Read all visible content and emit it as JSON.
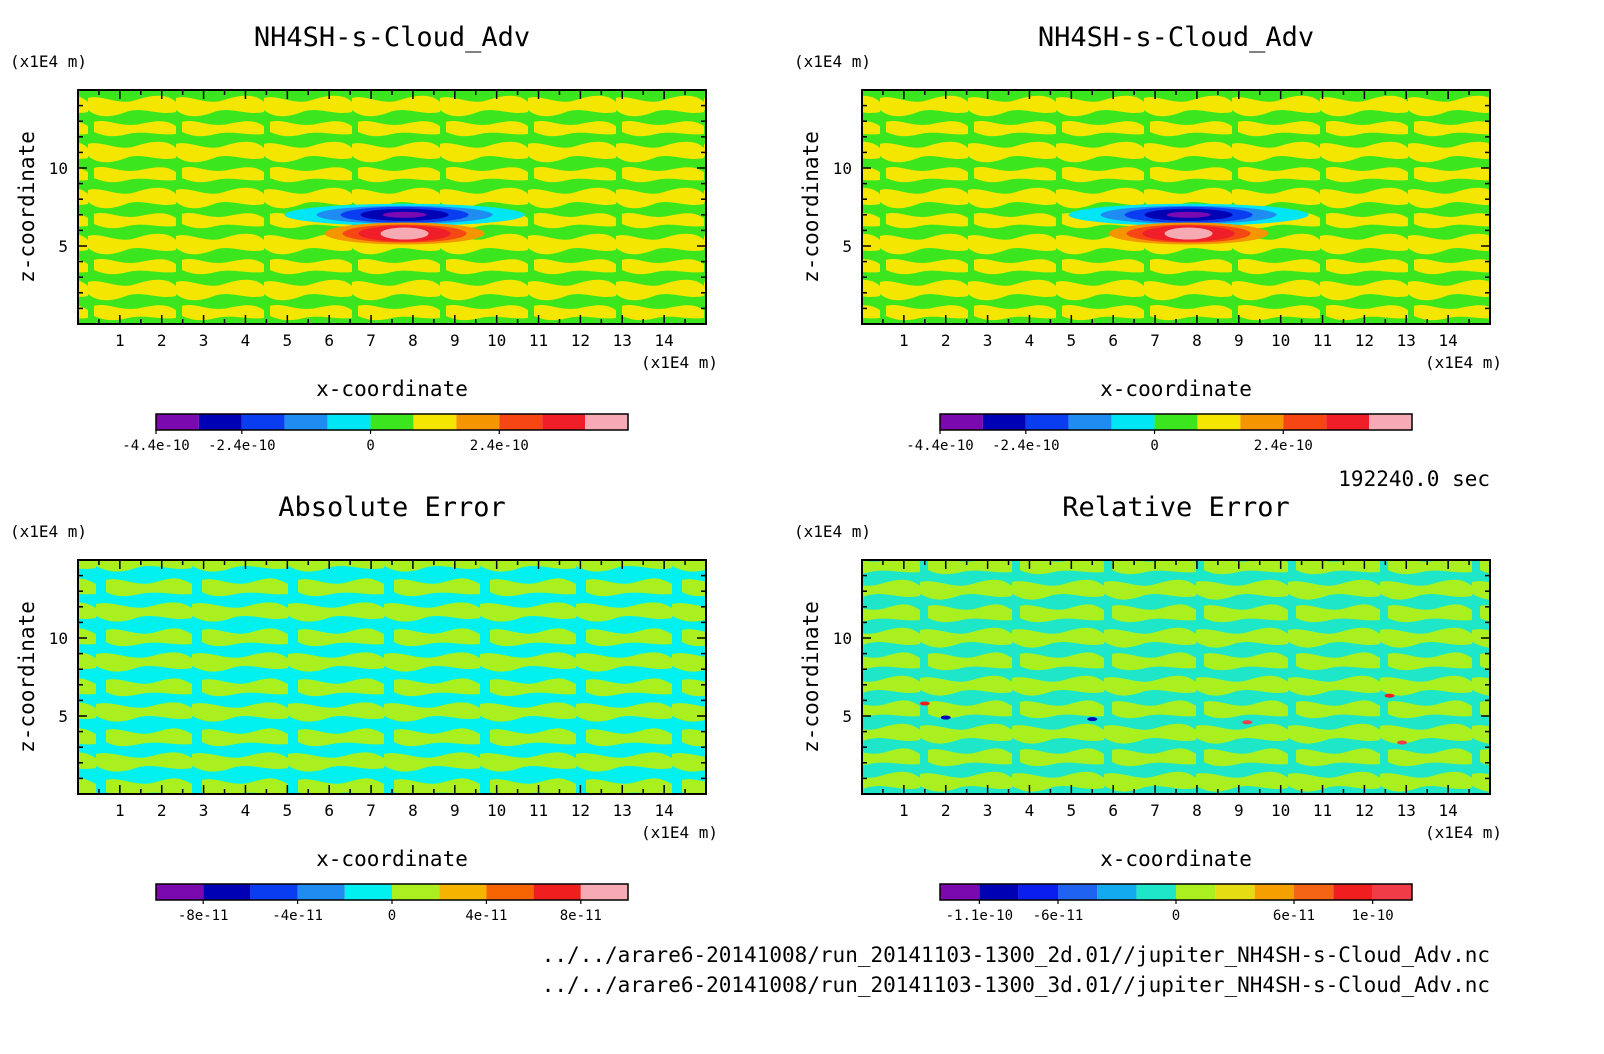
{
  "time_label": "192240.0 sec",
  "files": [
    "../../arare6-20141008/run_20141103-1300_2d.01//jupiter_NH4SH-s-Cloud_Adv.nc",
    "../../arare6-20141008/run_20141103-1300_3d.01//jupiter_NH4SH-s-Cloud_Adv.nc"
  ],
  "palettes": {
    "field": [
      "#7a0ab0",
      "#0000b4",
      "#0a3cf0",
      "#1e8cf0",
      "#00e6f5",
      "#3ce61e",
      "#f5e600",
      "#f59600",
      "#f54614",
      "#f01e28",
      "#f5aab4"
    ],
    "abs_error": [
      "#7a0ab0",
      "#0000b4",
      "#0a3cf0",
      "#1e8cf0",
      "#00f0f0",
      "#aaf01e",
      "#f5b400",
      "#f56400",
      "#f01e1e",
      "#f5aab4"
    ],
    "rel_error": [
      "#7a0ab0",
      "#0000b4",
      "#0a1ef0",
      "#1e64f0",
      "#14aaf0",
      "#1ee6c8",
      "#aaf01e",
      "#e6dc14",
      "#f5a000",
      "#f56414",
      "#f01e1e",
      "#f03c46"
    ]
  },
  "chart_data": [
    {
      "type": "heatmap",
      "title": "NH4SH-s-Cloud_Adv",
      "xlabel": "x-coordinate",
      "ylabel": "z-coordinate",
      "x_unit": "(x1E4 m)",
      "y_unit": "(x1E4 m)",
      "xlim": [
        0,
        15
      ],
      "ylim": [
        0,
        15
      ],
      "x_ticks": [
        1,
        2,
        3,
        4,
        5,
        6,
        7,
        8,
        9,
        10,
        11,
        12,
        13,
        14
      ],
      "y_ticks": [
        5,
        10
      ],
      "colorbar_labels": [
        "-4.4e-10",
        "-2.4e-10",
        "0",
        "2.4e-10"
      ],
      "levels": [
        "<-4.4e-10",
        "-4.4e-10..-3.4e-10",
        "-3.4e-10..-2.4e-10",
        "-2.4e-10..-1.4e-10",
        "-1.4e-10..-4e-11",
        "-4e-11..0",
        "0..4e-11",
        "4e-11..1.4e-10",
        "1.4e-10..2.4e-10",
        "2.4e-10..3.4e-10",
        ">3.4e-10"
      ],
      "features": [
        {
          "kind": "negative lobe (blue/purple)",
          "x_center": 7.8,
          "z_center": 7.0,
          "min": "-4.4e-10"
        },
        {
          "kind": "positive lobe (red/pink)",
          "x_center": 7.8,
          "z_center": 5.8,
          "max": "3.4e-10"
        },
        {
          "kind": "background",
          "pattern": "alternating green/yellow",
          "range": "-4e-11..4e-11"
        }
      ]
    },
    {
      "type": "heatmap",
      "title": "NH4SH-s-Cloud_Adv",
      "xlabel": "x-coordinate",
      "ylabel": "z-coordinate",
      "x_unit": "(x1E4 m)",
      "y_unit": "(x1E4 m)",
      "xlim": [
        0,
        15
      ],
      "ylim": [
        0,
        15
      ],
      "x_ticks": [
        1,
        2,
        3,
        4,
        5,
        6,
        7,
        8,
        9,
        10,
        11,
        12,
        13,
        14
      ],
      "y_ticks": [
        5,
        10
      ],
      "colorbar_labels": [
        "-4.4e-10",
        "-2.4e-10",
        "0",
        "2.4e-10"
      ],
      "features": [
        {
          "kind": "negative lobe (blue/purple)",
          "x_center": 7.8,
          "z_center": 7.0,
          "min": "-4.4e-10"
        },
        {
          "kind": "positive lobe (red/pink)",
          "x_center": 7.8,
          "z_center": 5.8,
          "max": "3.4e-10"
        },
        {
          "kind": "background",
          "pattern": "alternating green/yellow",
          "range": "-4e-11..4e-11"
        }
      ]
    },
    {
      "type": "heatmap",
      "title": "Absolute Error",
      "xlabel": "x-coordinate",
      "ylabel": "z-coordinate",
      "x_unit": "(x1E4 m)",
      "y_unit": "(x1E4 m)",
      "xlim": [
        0,
        15
      ],
      "ylim": [
        0,
        15
      ],
      "x_ticks": [
        1,
        2,
        3,
        4,
        5,
        6,
        7,
        8,
        9,
        10,
        11,
        12,
        13,
        14
      ],
      "y_ticks": [
        5,
        10
      ],
      "colorbar_labels": [
        "-8e-11",
        "-4e-11",
        "0",
        "4e-11",
        "8e-11"
      ],
      "features": [
        {
          "kind": "background",
          "pattern": "alternating cyan/yellow-green",
          "range": "-2e-11..2e-11"
        }
      ]
    },
    {
      "type": "heatmap",
      "title": "Relative Error",
      "xlabel": "x-coordinate",
      "ylabel": "z-coordinate",
      "x_unit": "(x1E4 m)",
      "y_unit": "(x1E4 m)",
      "xlim": [
        0,
        15
      ],
      "ylim": [
        0,
        15
      ],
      "x_ticks": [
        1,
        2,
        3,
        4,
        5,
        6,
        7,
        8,
        9,
        10,
        11,
        12,
        13,
        14
      ],
      "y_ticks": [
        5,
        10
      ],
      "colorbar_labels": [
        "-1.1e-10",
        "-6e-11",
        "0",
        "6e-11",
        "1e-10"
      ],
      "features": [
        {
          "kind": "background",
          "pattern": "alternating teal/yellow-green"
        },
        {
          "kind": "isolated spots",
          "x": [
            1.5,
            2.0,
            5.5,
            9.2,
            12.6,
            12.9
          ],
          "z": [
            5.8,
            4.9,
            4.8,
            4.6,
            6.3,
            3.3
          ]
        }
      ]
    }
  ]
}
